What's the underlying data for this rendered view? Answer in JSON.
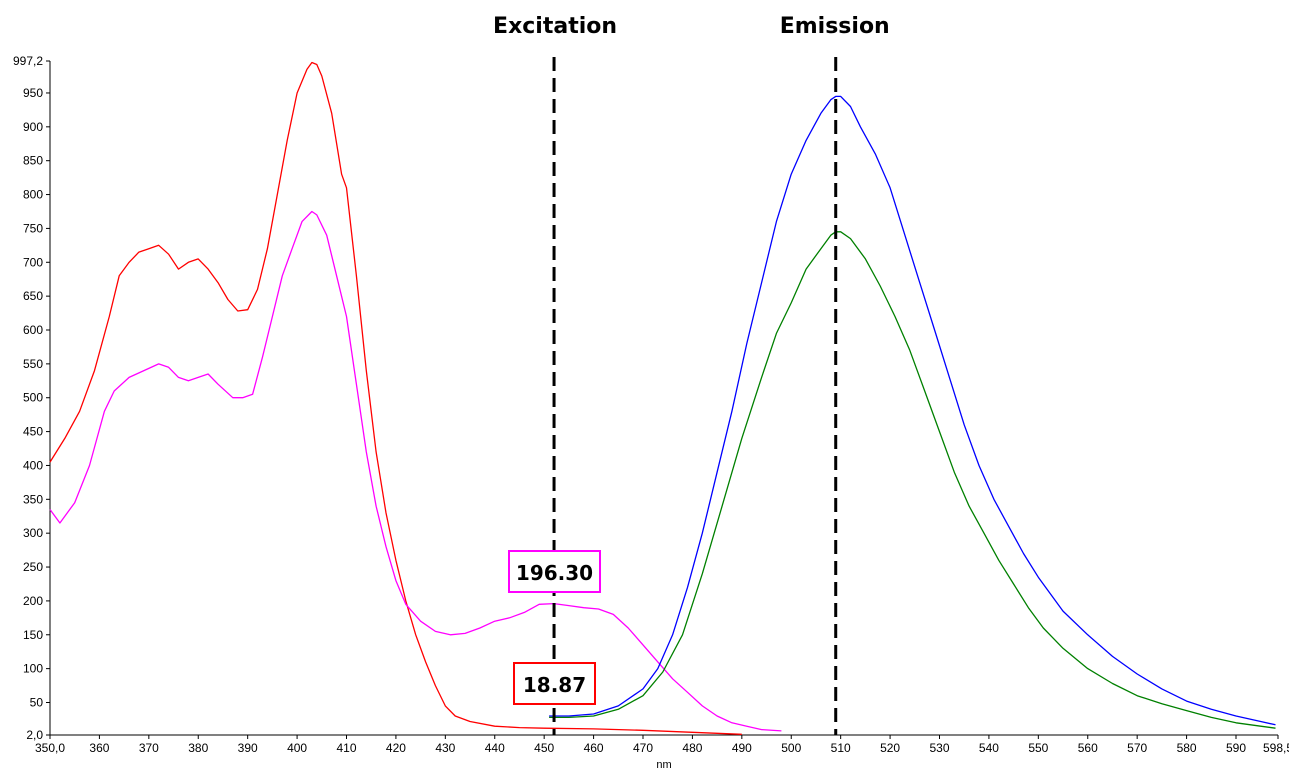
{
  "chart_data": {
    "type": "line",
    "title": "",
    "xlabel": "nm",
    "ylabel": "",
    "xlim": [
      350.0,
      598.5
    ],
    "ylim": [
      2.0,
      997.2
    ],
    "x_ticks": [
      350.0,
      360,
      370,
      380,
      390,
      400,
      410,
      420,
      430,
      440,
      450,
      460,
      470,
      480,
      490,
      500,
      510,
      520,
      530,
      540,
      550,
      560,
      570,
      580,
      590,
      598.5
    ],
    "x_tick_labels": [
      "350,0",
      "360",
      "370",
      "380",
      "390",
      "400",
      "410",
      "420",
      "430",
      "440",
      "450",
      "460",
      "470",
      "480",
      "490",
      "500",
      "510",
      "520",
      "530",
      "540",
      "550",
      "560",
      "570",
      "580",
      "590",
      "598,5"
    ],
    "y_ticks": [
      2.0,
      50,
      100,
      150,
      200,
      250,
      300,
      350,
      400,
      450,
      500,
      550,
      600,
      650,
      700,
      750,
      800,
      850,
      900,
      950,
      997.2
    ],
    "y_tick_labels": [
      "2,0",
      "50",
      "100",
      "150",
      "200",
      "250",
      "300",
      "350",
      "400",
      "450",
      "500",
      "550",
      "600",
      "650",
      "700",
      "750",
      "800",
      "850",
      "900",
      "950",
      "997,2"
    ],
    "grid": false,
    "legend": false,
    "series": [
      {
        "color": "#ff0000",
        "x": [
          350,
          353,
          356,
          359,
          362,
          364,
          366,
          368,
          370,
          372,
          374,
          376,
          378,
          380,
          382,
          384,
          386,
          388,
          390,
          392,
          394,
          396,
          398,
          400,
          402,
          403,
          404,
          405,
          407,
          409,
          410,
          412,
          414,
          416,
          418,
          420,
          422,
          424,
          426,
          428,
          430,
          432,
          435,
          440,
          445,
          450,
          460,
          470,
          480,
          490
        ],
        "y": [
          405,
          440,
          480,
          540,
          620,
          680,
          700,
          715,
          720,
          725,
          712,
          690,
          700,
          705,
          690,
          670,
          645,
          628,
          630,
          660,
          720,
          800,
          880,
          950,
          985,
          995,
          992,
          975,
          920,
          830,
          810,
          680,
          540,
          420,
          330,
          260,
          200,
          150,
          110,
          75,
          45,
          30,
          22,
          15,
          13,
          12,
          11,
          9,
          6,
          3
        ]
      },
      {
        "color": "#ff00ff",
        "x": [
          350,
          352,
          355,
          358,
          361,
          363,
          366,
          369,
          372,
          374,
          376,
          378,
          380,
          382,
          384,
          387,
          389,
          391,
          393,
          395,
          397,
          399,
          401,
          403,
          404,
          406,
          408,
          410,
          412,
          414,
          416,
          418,
          420,
          422,
          425,
          428,
          431,
          434,
          437,
          440,
          443,
          446,
          449,
          452,
          455,
          458,
          461,
          464,
          467,
          470,
          473,
          476,
          479,
          482,
          485,
          488,
          491,
          494,
          498
        ],
        "y": [
          335,
          315,
          345,
          400,
          480,
          510,
          530,
          540,
          550,
          545,
          530,
          525,
          530,
          535,
          520,
          500,
          500,
          505,
          560,
          620,
          680,
          720,
          760,
          775,
          770,
          740,
          680,
          620,
          520,
          420,
          340,
          280,
          230,
          195,
          170,
          155,
          150,
          152,
          160,
          170,
          175,
          183,
          195,
          196,
          193,
          190,
          188,
          180,
          160,
          135,
          110,
          85,
          65,
          45,
          30,
          20,
          15,
          10,
          8
        ]
      },
      {
        "color": "#0000ff",
        "x": [
          451,
          455,
          460,
          465,
          470,
          473,
          476,
          479,
          482,
          485,
          488,
          491,
          494,
          497,
          500,
          503,
          506,
          508,
          509,
          510,
          512,
          514,
          517,
          520,
          523,
          526,
          529,
          532,
          535,
          538,
          541,
          544,
          547,
          550,
          555,
          560,
          565,
          570,
          575,
          580,
          585,
          590,
          595,
          598
        ],
        "y": [
          30,
          30,
          33,
          45,
          70,
          100,
          150,
          220,
          300,
          390,
          480,
          580,
          670,
          760,
          830,
          880,
          920,
          940,
          945,
          945,
          930,
          900,
          860,
          810,
          740,
          670,
          600,
          530,
          460,
          400,
          350,
          310,
          270,
          235,
          185,
          150,
          118,
          92,
          70,
          52,
          40,
          30,
          22,
          17
        ]
      },
      {
        "color": "#008000",
        "x": [
          451,
          455,
          460,
          465,
          470,
          474,
          478,
          482,
          486,
          490,
          494,
          497,
          500,
          503,
          506,
          508,
          509,
          510,
          512,
          515,
          518,
          521,
          524,
          527,
          530,
          533,
          536,
          539,
          542,
          545,
          548,
          551,
          555,
          560,
          565,
          570,
          575,
          580,
          585,
          590,
          595,
          598
        ],
        "y": [
          28,
          28,
          30,
          40,
          60,
          95,
          150,
          240,
          340,
          440,
          530,
          595,
          640,
          690,
          720,
          740,
          745,
          745,
          735,
          705,
          665,
          620,
          570,
          510,
          450,
          390,
          340,
          300,
          260,
          225,
          190,
          160,
          130,
          100,
          78,
          60,
          48,
          38,
          28,
          20,
          15,
          12
        ]
      }
    ],
    "annotations": {
      "excitation_label": "Excitation",
      "emission_label": "Emission",
      "excitation_x": 452,
      "emission_x": 509,
      "value_upper": "196.30",
      "value_upper_color": "#ff00ff",
      "value_lower": "18.87",
      "value_lower_color": "#ff0000"
    }
  }
}
